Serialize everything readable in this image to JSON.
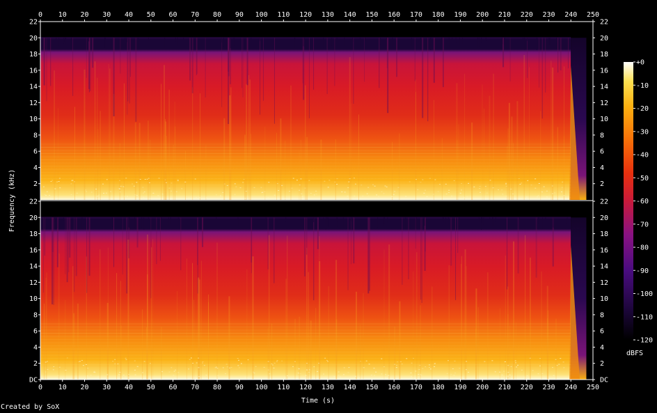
{
  "chart_data": {
    "type": "heatmap",
    "xlabel": "Time (s)",
    "ylabel": "Frequency (kHz)",
    "colorbar_label": "dBFS",
    "credit": "Created by SoX",
    "x_ticks": [
      0,
      10,
      20,
      30,
      40,
      50,
      60,
      70,
      80,
      90,
      100,
      110,
      120,
      130,
      140,
      150,
      160,
      170,
      180,
      190,
      200,
      210,
      220,
      230,
      240,
      250
    ],
    "xlim": [
      0,
      250
    ],
    "y_ticks_top": [
      "22",
      "20",
      "18",
      "16",
      "14",
      "12",
      "10",
      "8",
      "6",
      "4",
      "2"
    ],
    "y_ticks_bottom": [
      "22",
      "20",
      "18",
      "16",
      "14",
      "12",
      "10",
      "8",
      "6",
      "4",
      "2",
      "DC"
    ],
    "ylim": [
      0,
      22
    ],
    "colorbar_ticks": [
      "+0",
      "-10",
      "-20",
      "-30",
      "-40",
      "-50",
      "-60",
      "-70",
      "-80",
      "-90",
      "-100",
      "-110",
      "-120"
    ],
    "colorbar_range": [
      -120,
      0
    ],
    "channels": 2,
    "audio_end_s": 240,
    "content_cutoff_khz": 20,
    "colormap": [
      "#000000",
      "#1a0636",
      "#3b0a6e",
      "#6a0f8a",
      "#9a1565",
      "#cc1a1a",
      "#e83a10",
      "#f77008",
      "#fca308",
      "#fdd21a",
      "#fffcc8"
    ]
  }
}
